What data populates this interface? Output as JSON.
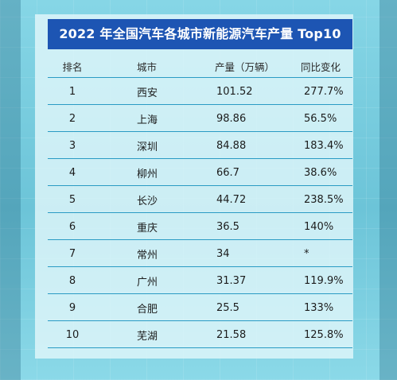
{
  "chart_data": {
    "type": "table",
    "title": "2022 年全国汽车各城市新能源汽车产量 Top10",
    "columns": [
      "排名",
      "城市",
      "产量（万辆）",
      "同比变化"
    ],
    "rows": [
      {
        "rank": "1",
        "city": "西安",
        "output": "101.52",
        "yoy": "277.7%"
      },
      {
        "rank": "2",
        "city": "上海",
        "output": "98.86",
        "yoy": "56.5%"
      },
      {
        "rank": "3",
        "city": "深圳",
        "output": "84.88",
        "yoy": "183.4%"
      },
      {
        "rank": "4",
        "city": "柳州",
        "output": "66.7",
        "yoy": "38.6%"
      },
      {
        "rank": "5",
        "city": "长沙",
        "output": "44.72",
        "yoy": "238.5%"
      },
      {
        "rank": "6",
        "city": "重庆",
        "output": "36.5",
        "yoy": "140%"
      },
      {
        "rank": "7",
        "city": "常州",
        "output": "34",
        "yoy": "*"
      },
      {
        "rank": "8",
        "city": "广州",
        "output": "31.37",
        "yoy": "119.9%"
      },
      {
        "rank": "9",
        "city": "合肥",
        "output": "25.5",
        "yoy": "133%"
      },
      {
        "rank": "10",
        "city": "芜湖",
        "output": "21.58",
        "yoy": "125.8%"
      }
    ]
  },
  "colors": {
    "title_bg": "#1d55b3",
    "row_line": "#2a9bc4",
    "background": "#7fd0df"
  }
}
